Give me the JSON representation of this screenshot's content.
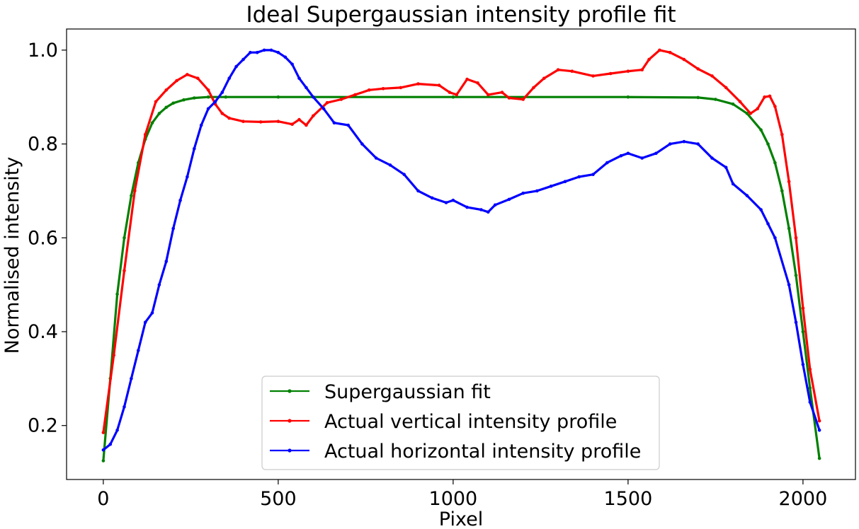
{
  "chart_data": {
    "type": "line",
    "title": "Ideal Supergaussian intensity profile fit",
    "xlabel": "Pixel",
    "ylabel": "Normalised intensity",
    "xlim": [
      -105,
      2150
    ],
    "ylim": [
      0.085,
      1.045
    ],
    "xticks": [
      0,
      500,
      1000,
      1500,
      2000
    ],
    "yticks": [
      0.2,
      0.4,
      0.6,
      0.8,
      1.0
    ],
    "xtick_labels": [
      "0",
      "500",
      "1000",
      "1500",
      "2000"
    ],
    "ytick_labels": [
      "0.2",
      "0.4",
      "0.6",
      "0.8",
      "1.0"
    ],
    "grid": false,
    "legend_position": "lower center",
    "series": [
      {
        "name": "Supergaussian fit",
        "color": "#008000",
        "x": [
          0,
          20,
          40,
          60,
          80,
          100,
          120,
          140,
          160,
          180,
          200,
          230,
          260,
          300,
          350,
          500,
          1000,
          1500,
          1700,
          1750,
          1800,
          1840,
          1880,
          1900,
          1920,
          1940,
          1960,
          1980,
          2000,
          2020,
          2047
        ],
        "y": [
          0.125,
          0.3,
          0.48,
          0.6,
          0.69,
          0.76,
          0.81,
          0.845,
          0.865,
          0.878,
          0.887,
          0.894,
          0.898,
          0.9,
          0.9,
          0.9,
          0.9,
          0.9,
          0.899,
          0.895,
          0.885,
          0.865,
          0.83,
          0.8,
          0.76,
          0.7,
          0.62,
          0.52,
          0.4,
          0.28,
          0.13
        ]
      },
      {
        "name": "Actual vertical intensity profile",
        "color": "#ff0000",
        "x": [
          0,
          30,
          60,
          90,
          120,
          150,
          180,
          210,
          240,
          270,
          300,
          320,
          340,
          360,
          400,
          450,
          500,
          540,
          560,
          580,
          600,
          640,
          680,
          720,
          760,
          800,
          850,
          900,
          960,
          990,
          1010,
          1040,
          1070,
          1100,
          1140,
          1160,
          1200,
          1230,
          1260,
          1300,
          1340,
          1400,
          1450,
          1500,
          1540,
          1560,
          1590,
          1620,
          1660,
          1700,
          1740,
          1780,
          1820,
          1850,
          1870,
          1890,
          1905,
          1920,
          1940,
          1960,
          1980,
          2000,
          2020,
          2047
        ],
        "y": [
          0.185,
          0.35,
          0.53,
          0.7,
          0.82,
          0.89,
          0.915,
          0.935,
          0.948,
          0.94,
          0.915,
          0.885,
          0.865,
          0.855,
          0.848,
          0.847,
          0.848,
          0.842,
          0.852,
          0.84,
          0.86,
          0.888,
          0.895,
          0.905,
          0.915,
          0.918,
          0.92,
          0.928,
          0.925,
          0.91,
          0.905,
          0.938,
          0.93,
          0.905,
          0.91,
          0.898,
          0.895,
          0.92,
          0.94,
          0.958,
          0.955,
          0.945,
          0.95,
          0.955,
          0.958,
          0.98,
          1.0,
          0.995,
          0.98,
          0.96,
          0.945,
          0.92,
          0.89,
          0.865,
          0.875,
          0.9,
          0.902,
          0.88,
          0.82,
          0.72,
          0.6,
          0.45,
          0.32,
          0.21
        ]
      },
      {
        "name": "Actual horizontal intensity profile",
        "color": "#0000ff",
        "x": [
          0,
          20,
          40,
          60,
          80,
          100,
          120,
          140,
          160,
          180,
          200,
          220,
          240,
          260,
          280,
          300,
          320,
          340,
          360,
          380,
          400,
          420,
          440,
          460,
          480,
          500,
          520,
          540,
          560,
          580,
          600,
          630,
          660,
          700,
          740,
          780,
          820,
          860,
          900,
          940,
          980,
          1000,
          1040,
          1080,
          1100,
          1120,
          1160,
          1200,
          1240,
          1280,
          1320,
          1360,
          1400,
          1440,
          1480,
          1500,
          1540,
          1580,
          1620,
          1660,
          1700,
          1740,
          1780,
          1800,
          1840,
          1880,
          1900,
          1920,
          1960,
          1980,
          2000,
          2020,
          2047
        ],
        "y": [
          0.148,
          0.16,
          0.19,
          0.24,
          0.3,
          0.36,
          0.42,
          0.44,
          0.5,
          0.55,
          0.62,
          0.68,
          0.73,
          0.79,
          0.84,
          0.875,
          0.89,
          0.91,
          0.94,
          0.965,
          0.98,
          0.995,
          0.995,
          1.0,
          1.0,
          0.995,
          0.985,
          0.97,
          0.94,
          0.92,
          0.9,
          0.875,
          0.845,
          0.84,
          0.8,
          0.77,
          0.755,
          0.735,
          0.7,
          0.685,
          0.675,
          0.68,
          0.665,
          0.66,
          0.655,
          0.67,
          0.682,
          0.695,
          0.7,
          0.71,
          0.72,
          0.73,
          0.735,
          0.76,
          0.775,
          0.78,
          0.77,
          0.78,
          0.8,
          0.805,
          0.8,
          0.77,
          0.75,
          0.715,
          0.69,
          0.66,
          0.63,
          0.6,
          0.5,
          0.42,
          0.33,
          0.25,
          0.19
        ]
      }
    ]
  }
}
